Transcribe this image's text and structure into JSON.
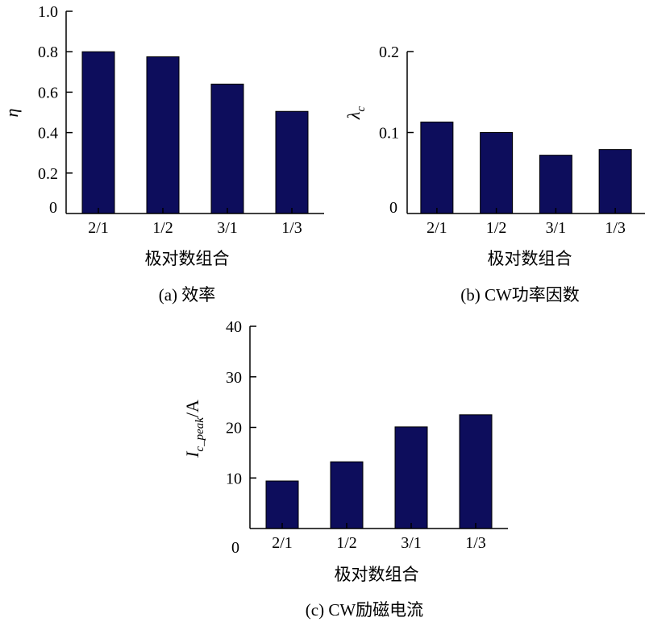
{
  "colors": {
    "bar": "#0d0d5c",
    "axis": "#000000"
  },
  "chart_data": [
    {
      "type": "bar",
      "caption": "(a) 效率",
      "xlabel": "极对数组合",
      "ylabel": "η",
      "origin_label": "0",
      "categories": [
        "2/1",
        "1/2",
        "3/1",
        "1/3"
      ],
      "values": [
        0.8,
        0.775,
        0.64,
        0.505
      ],
      "ylim": [
        0,
        1.0
      ],
      "yticks": [
        0.2,
        0.4,
        0.6,
        0.8,
        1.0
      ],
      "ytick_labels": [
        "0.2",
        "0.4",
        "0.6",
        "0.8",
        "1.0"
      ],
      "grid": false
    },
    {
      "type": "bar",
      "caption": "(b) CW功率因数",
      "xlabel": "极对数组合",
      "ylabel": "λ",
      "ylabel_sub": "c",
      "origin_label": "0",
      "categories": [
        "2/1",
        "1/2",
        "3/1",
        "1/3"
      ],
      "values": [
        0.113,
        0.1,
        0.072,
        0.079
      ],
      "ylim": [
        0,
        0.2
      ],
      "yticks": [
        0.1,
        0.2
      ],
      "ytick_labels": [
        "0.1",
        "0.2"
      ],
      "grid": false
    },
    {
      "type": "bar",
      "caption": "(c) CW励磁电流",
      "xlabel": "极对数组合",
      "ylabel": "I",
      "ylabel_sub": "c_peak",
      "ylabel_suffix": "/A",
      "origin_label": "0",
      "categories": [
        "2/1",
        "1/2",
        "3/1",
        "1/3"
      ],
      "values": [
        9.4,
        13.2,
        20.1,
        22.5
      ],
      "ylim": [
        0,
        40
      ],
      "yticks": [
        10,
        20,
        30,
        40
      ],
      "ytick_labels": [
        "10",
        "20",
        "30",
        "40"
      ],
      "grid": false
    }
  ]
}
